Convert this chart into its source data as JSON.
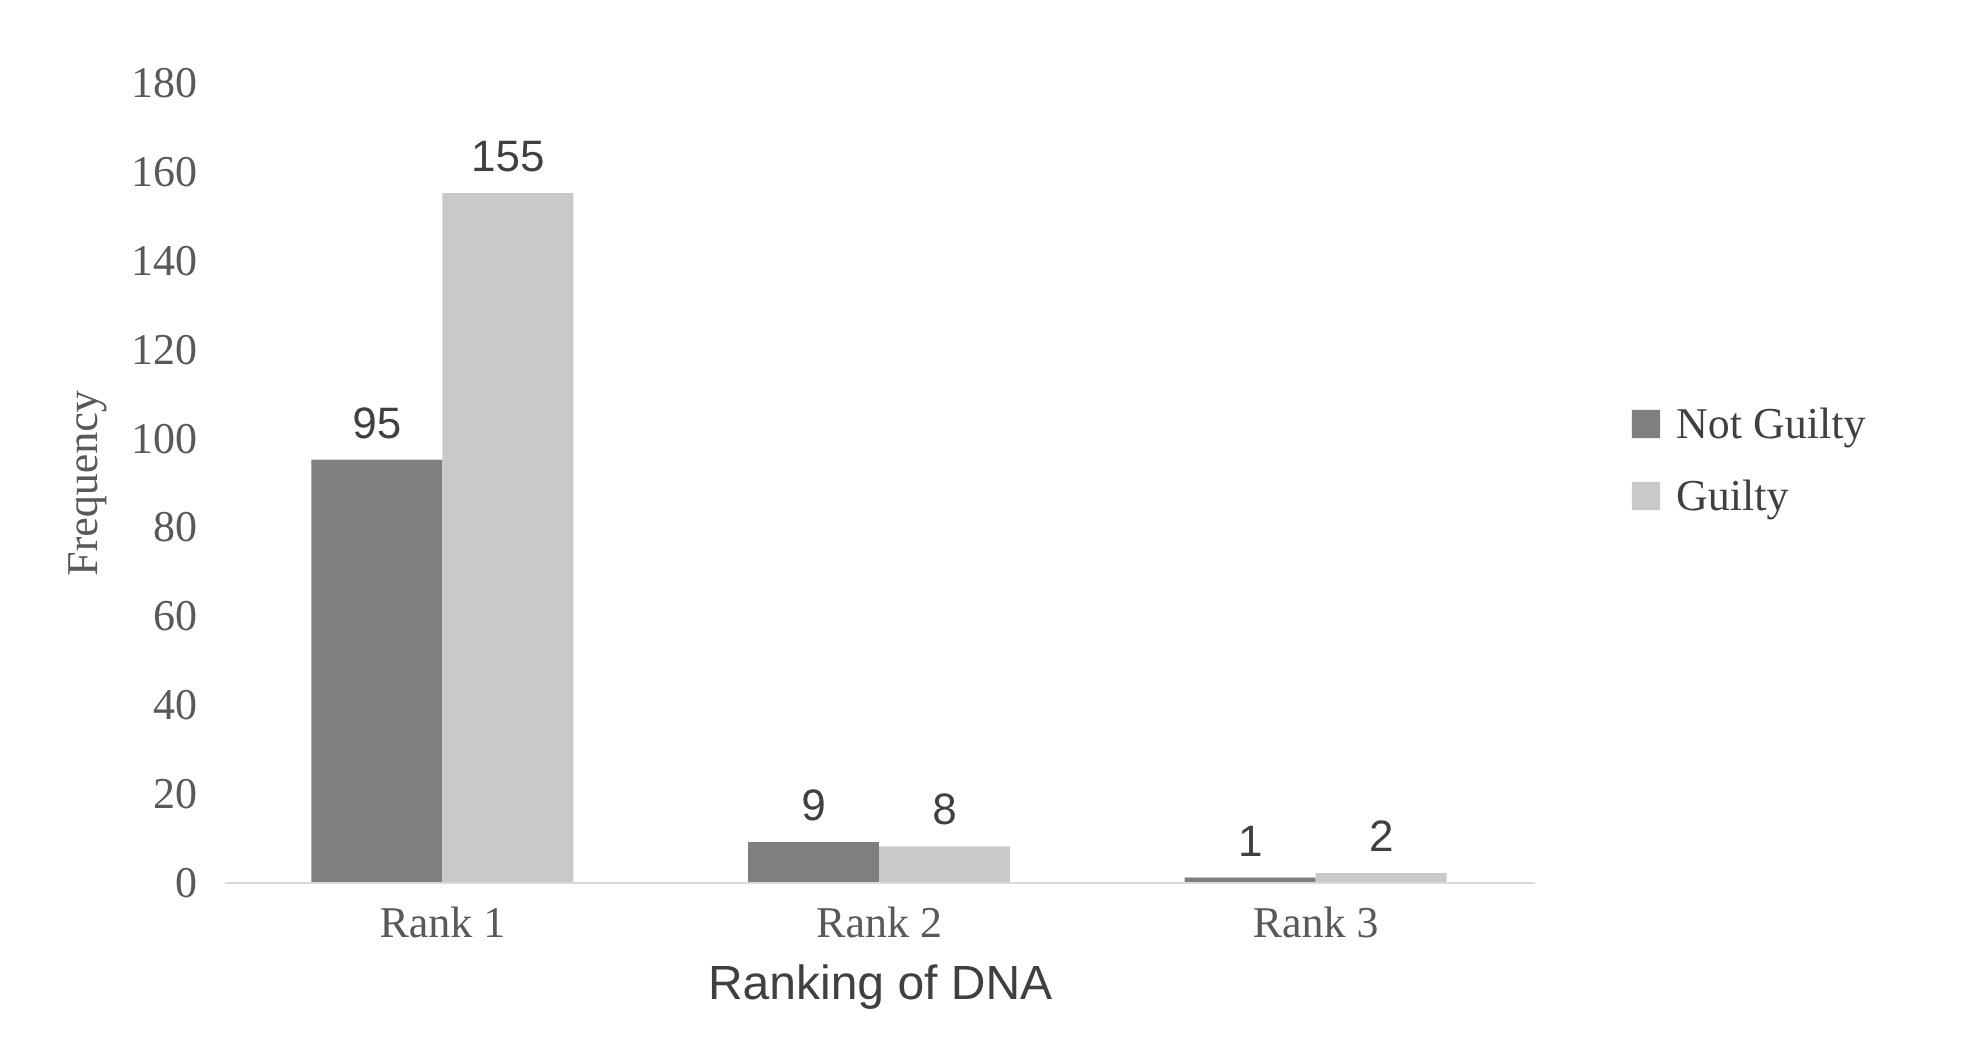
{
  "chart_data": {
    "type": "bar",
    "xlabel": "Ranking of DNA",
    "ylabel": "Frequency",
    "categories": [
      "Rank 1",
      "Rank 2",
      "Rank 3"
    ],
    "series": [
      {
        "name": "Not Guilty",
        "color": "#7f7f7f",
        "values": [
          95,
          9,
          1
        ]
      },
      {
        "name": "Guilty",
        "color": "#c9c9c9",
        "values": [
          155,
          8,
          2
        ]
      }
    ],
    "ylim": [
      0,
      180
    ],
    "yticks": [
      0,
      20,
      40,
      60,
      80,
      100,
      120,
      140,
      160,
      180
    ],
    "data_labels": true,
    "legend": "right"
  }
}
